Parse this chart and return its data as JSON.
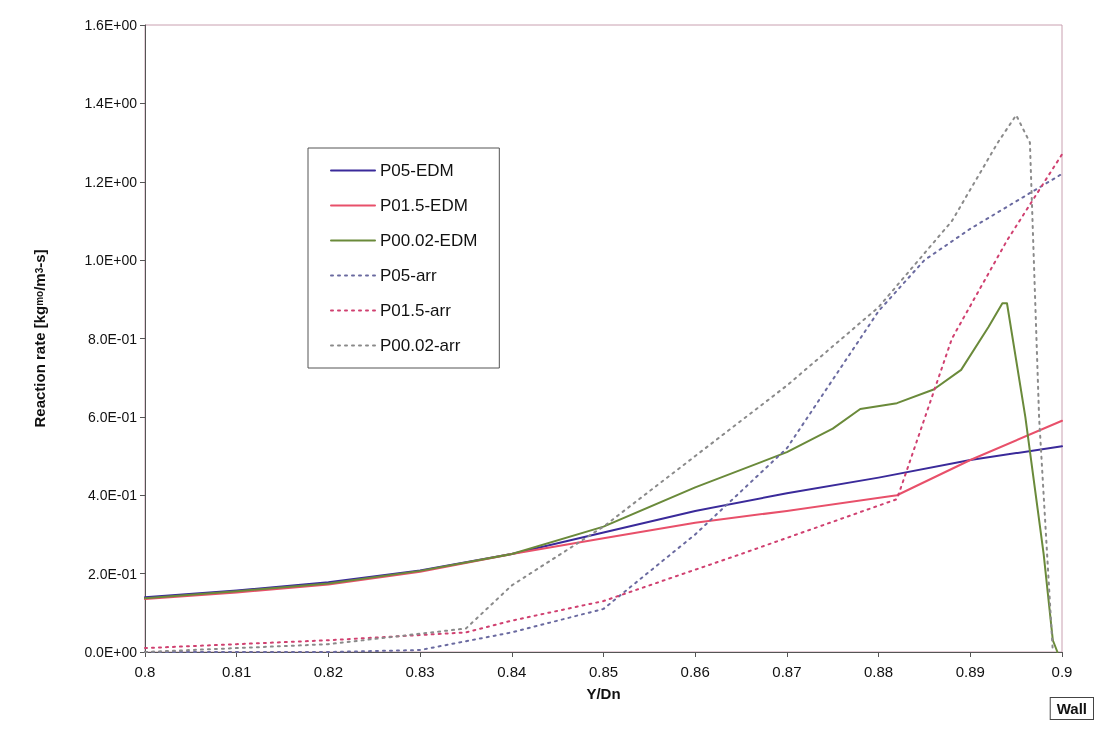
{
  "chart_data": {
    "type": "line",
    "xlabel": "Y/Dn",
    "ylabel": "Reaction rate [kg$_{mo}$/m$^{3}$-s]",
    "annotations": [
      "Wall"
    ],
    "xlim": [
      0.8,
      0.9
    ],
    "xticks": [
      0.8,
      0.81,
      0.82,
      0.83,
      0.84,
      0.85,
      0.86,
      0.87,
      0.88,
      0.89,
      0.9
    ],
    "ylim": [
      0,
      1.6
    ],
    "yticks": [
      {
        "value": 0,
        "label": "0.0E+00"
      },
      {
        "value": 0.2,
        "label": "2.0E-01"
      },
      {
        "value": 0.4,
        "label": "4.0E-01"
      },
      {
        "value": 0.6,
        "label": "6.0E-01"
      },
      {
        "value": 0.8,
        "label": "8.0E-01"
      },
      {
        "value": 1.0,
        "label": "1.0E+00"
      },
      {
        "value": 1.2,
        "label": "1.2E+00"
      },
      {
        "value": 1.4,
        "label": "1.4E+00"
      },
      {
        "value": 1.6,
        "label": "1.6E+00"
      }
    ],
    "grid": false,
    "legend": "top left",
    "marker": "none",
    "series": [
      {
        "name": "P05-EDM",
        "color": "#3a2a9a",
        "line_style": "solid",
        "x": [
          0.8,
          0.81,
          0.82,
          0.83,
          0.84,
          0.85,
          0.86,
          0.87,
          0.88,
          0.89,
          0.9
        ],
        "values": [
          0.14,
          0.157,
          0.178,
          0.208,
          0.25,
          0.305,
          0.36,
          0.405,
          0.445,
          0.49,
          0.525
        ]
      },
      {
        "name": "P01.5-EDM",
        "color": "#e8506a",
        "line_style": "solid",
        "x": [
          0.8,
          0.81,
          0.82,
          0.83,
          0.84,
          0.85,
          0.86,
          0.87,
          0.882,
          0.89,
          0.9
        ],
        "values": [
          0.135,
          0.152,
          0.172,
          0.205,
          0.25,
          0.29,
          0.33,
          0.36,
          0.4,
          0.49,
          0.59
        ]
      },
      {
        "name": "P00.02-EDM",
        "color": "#6a8a3a",
        "line_style": "solid",
        "x": [
          0.8,
          0.81,
          0.82,
          0.83,
          0.84,
          0.85,
          0.86,
          0.87,
          0.875,
          0.878,
          0.882,
          0.886,
          0.889,
          0.892,
          0.8935,
          0.894,
          0.896,
          0.898,
          0.899,
          0.8995
        ],
        "values": [
          0.137,
          0.155,
          0.175,
          0.207,
          0.25,
          0.32,
          0.42,
          0.51,
          0.57,
          0.62,
          0.635,
          0.67,
          0.72,
          0.83,
          0.89,
          0.89,
          0.6,
          0.25,
          0.03,
          0
        ]
      },
      {
        "name": "P05-arr",
        "color": "#6a6aa0",
        "line_style": "dotted",
        "x": [
          0.8,
          0.82,
          0.83,
          0.84,
          0.85,
          0.86,
          0.87,
          0.88,
          0.885,
          0.89,
          0.9
        ],
        "values": [
          0,
          0,
          0.005,
          0.05,
          0.11,
          0.3,
          0.52,
          0.87,
          1.0,
          1.08,
          1.22
        ]
      },
      {
        "name": "P01.5-arr",
        "color": "#d04070",
        "line_style": "dotted",
        "x": [
          0.8,
          0.81,
          0.82,
          0.835,
          0.84,
          0.85,
          0.865,
          0.882,
          0.888,
          0.894,
          0.9
        ],
        "values": [
          0.01,
          0.02,
          0.03,
          0.05,
          0.08,
          0.13,
          0.25,
          0.39,
          0.8,
          1.05,
          1.27
        ]
      },
      {
        "name": "P00.02-arr",
        "color": "#8a8a8a",
        "line_style": "dotted",
        "x": [
          0.8,
          0.82,
          0.835,
          0.84,
          0.85,
          0.86,
          0.87,
          0.88,
          0.888,
          0.893,
          0.895,
          0.8965,
          0.8975,
          0.899
        ],
        "values": [
          0,
          0.02,
          0.06,
          0.17,
          0.32,
          0.5,
          0.68,
          0.88,
          1.1,
          1.3,
          1.37,
          1.3,
          0.6,
          0
        ]
      }
    ]
  }
}
